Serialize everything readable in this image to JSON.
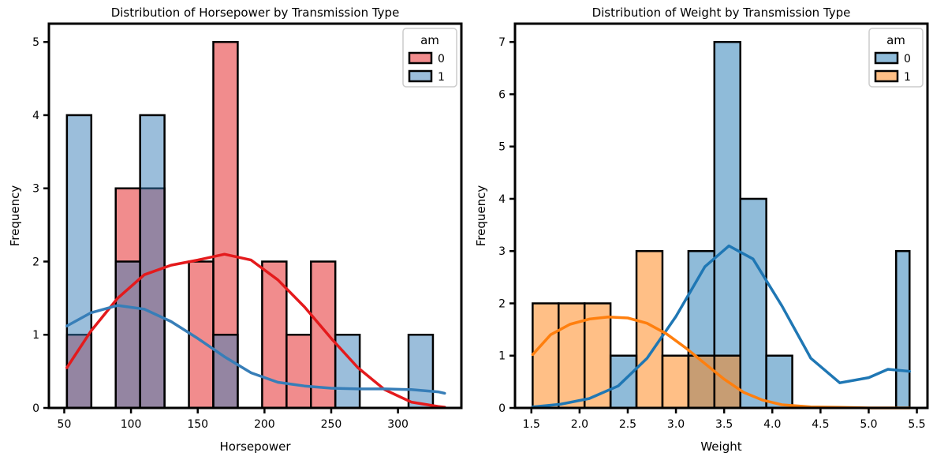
{
  "chart_data": [
    {
      "type": "histogram",
      "title": "Distribution of Horsepower by Transmission Type",
      "xlabel": "Horsepower",
      "ylabel": "Frequency",
      "xlim": [
        38.5,
        347.5
      ],
      "ylim": [
        0,
        5.25
      ],
      "xticks": [
        50,
        100,
        150,
        200,
        250,
        300
      ],
      "yticks": [
        0,
        1,
        2,
        3,
        4,
        5
      ],
      "legend": {
        "title": "am",
        "position": "top-right",
        "entries": [
          "0",
          "1"
        ]
      },
      "bin_edges": [
        52.0,
        70.28,
        88.56,
        106.84,
        125.12,
        143.4,
        161.68,
        179.96,
        198.24,
        216.52,
        234.8,
        253.08,
        271.36,
        289.64,
        307.92,
        326.2,
        344.48
      ],
      "series": [
        {
          "name": "0",
          "color": "#e41a1c",
          "counts": [
            1,
            0,
            3,
            3,
            0,
            2,
            5,
            0,
            2,
            1,
            2,
            0,
            0,
            0,
            0,
            0
          ],
          "kde": {
            "x": [
              52,
              70,
              90,
              110,
              130,
              150,
              170,
              190,
              210,
              230,
              250,
              270,
              290,
              310,
              330,
              335
            ],
            "y": [
              0.55,
              1.05,
              1.5,
              1.82,
              1.95,
              2.02,
              2.1,
              2.02,
              1.75,
              1.38,
              0.95,
              0.55,
              0.25,
              0.08,
              0.02,
              0.01
            ]
          }
        },
        {
          "name": "1",
          "color": "#377eb8",
          "counts": [
            4,
            0,
            2,
            4,
            0,
            0,
            1,
            0,
            0,
            0,
            0,
            1,
            0,
            0,
            1,
            0
          ],
          "kde": {
            "x": [
              52,
              70,
              90,
              110,
              130,
              150,
              170,
              190,
              210,
              230,
              250,
              270,
              290,
              310,
              330,
              335
            ],
            "y": [
              1.12,
              1.3,
              1.4,
              1.35,
              1.18,
              0.95,
              0.7,
              0.48,
              0.35,
              0.3,
              0.27,
              0.26,
              0.26,
              0.25,
              0.22,
              0.2
            ]
          }
        }
      ]
    },
    {
      "type": "histogram",
      "title": "Distribution of Weight by Transmission Type",
      "xlabel": "Weight",
      "ylabel": "Frequency",
      "xlim": [
        1.33,
        5.61
      ],
      "ylim": [
        0,
        7.35
      ],
      "xticks": [
        "1.5",
        "2.0",
        "2.5",
        "3.0",
        "3.5",
        "4.0",
        "4.5",
        "5.0",
        "5.5"
      ],
      "yticks": [
        0,
        1,
        2,
        3,
        4,
        5,
        6,
        7
      ],
      "legend": {
        "title": "am",
        "position": "top-right",
        "entries": [
          "0",
          "1"
        ]
      },
      "bin_edges": [
        1.513,
        1.7824,
        2.0518,
        2.3212,
        2.5906,
        2.86,
        3.1294,
        3.3988,
        3.6682,
        3.9376,
        4.207,
        4.4764,
        4.7458,
        5.0152,
        5.2846,
        5.424
      ],
      "series": [
        {
          "name": "0",
          "color": "#1f77b4",
          "counts": [
            0,
            0,
            0,
            1,
            0,
            0,
            3,
            7,
            4,
            1,
            0,
            0,
            0,
            0,
            3
          ],
          "kde": {
            "x": [
              1.513,
              1.8,
              2.1,
              2.4,
              2.7,
              3.0,
              3.3,
              3.55,
              3.8,
              4.1,
              4.4,
              4.7,
              5.0,
              5.2,
              5.424
            ],
            "y": [
              0.02,
              0.07,
              0.18,
              0.42,
              0.95,
              1.75,
              2.7,
              3.1,
              2.85,
              1.95,
              0.95,
              0.48,
              0.58,
              0.74,
              0.7
            ]
          }
        },
        {
          "name": "1",
          "color": "#ff7f0e",
          "counts": [
            2,
            2,
            2,
            0,
            3,
            1,
            1,
            1,
            0,
            0,
            0,
            0,
            0,
            0,
            0
          ],
          "kde": {
            "x": [
              1.513,
              1.7,
              1.9,
              2.1,
              2.3,
              2.5,
              2.7,
              2.9,
              3.1,
              3.3,
              3.5,
              3.7,
              3.9,
              4.1,
              4.4,
              4.7,
              5.0,
              5.424
            ],
            "y": [
              1.02,
              1.4,
              1.6,
              1.7,
              1.74,
              1.72,
              1.62,
              1.42,
              1.15,
              0.85,
              0.55,
              0.3,
              0.15,
              0.06,
              0.02,
              0.01,
              0,
              0
            ]
          }
        }
      ]
    }
  ]
}
